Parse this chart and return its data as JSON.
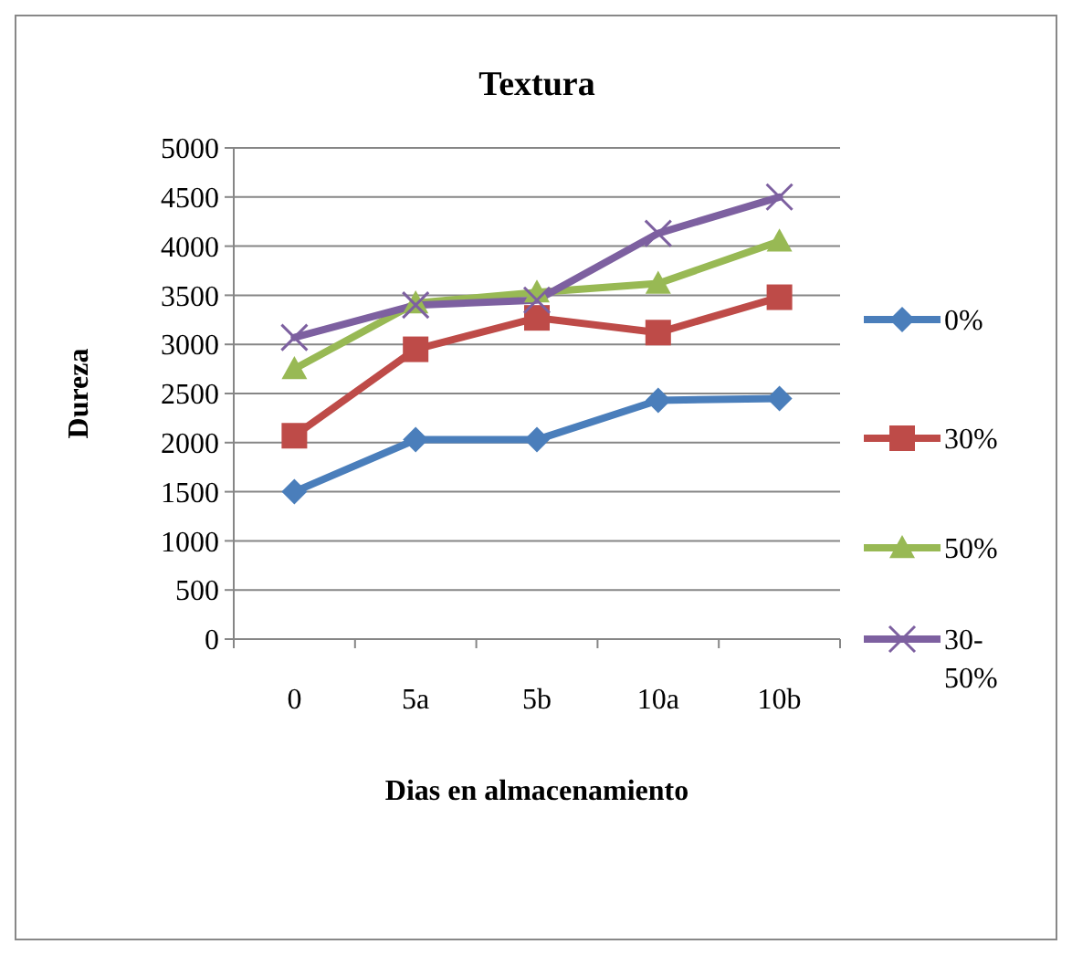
{
  "chart_data": {
    "type": "line",
    "title": "Textura",
    "xlabel": "Dias en almacenamiento",
    "ylabel": "Dureza",
    "categories": [
      "0",
      "5a",
      "5b",
      "10a",
      "10b"
    ],
    "ylim": [
      0,
      5000
    ],
    "yticks": [
      0,
      500,
      1000,
      1500,
      2000,
      2500,
      3000,
      3500,
      4000,
      4500,
      5000
    ],
    "grid": "y",
    "legend": "right",
    "series": [
      {
        "name": "0%",
        "color": "#4a7ebb",
        "marker": "diamond",
        "values": [
          1500,
          2030,
          2030,
          2430,
          2450
        ]
      },
      {
        "name": "30%",
        "color": "#be4b48",
        "marker": "square",
        "values": [
          2070,
          2950,
          3270,
          3120,
          3480
        ]
      },
      {
        "name": "50%",
        "color": "#98b954",
        "marker": "triangle",
        "values": [
          2750,
          3420,
          3530,
          3620,
          4050
        ]
      },
      {
        "name": "30-50%",
        "color": "#7d60a0",
        "marker": "cross",
        "values": [
          3070,
          3400,
          3450,
          4130,
          4500
        ]
      }
    ]
  }
}
